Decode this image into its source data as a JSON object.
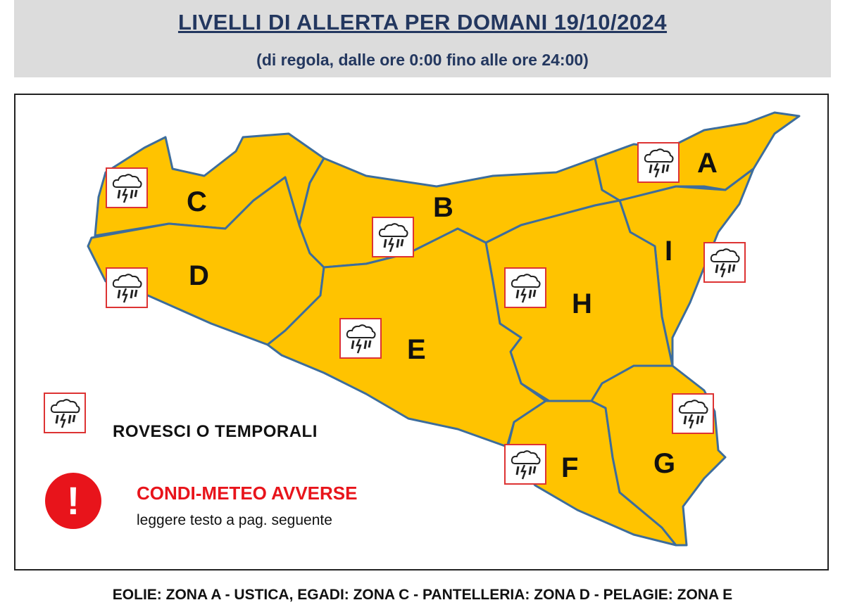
{
  "header": {
    "title": "LIVELLI DI ALLERTA PER DOMANI 19/10/2024",
    "subtitle": "(di regola, dalle ore 0:00 fino alle ore 24:00)"
  },
  "map": {
    "alert_color": "#FFC300",
    "border_color": "#3d6d9c",
    "zones": [
      {
        "id": "A",
        "label": "A",
        "level": "yellow",
        "icon": "thunderstorm-icon"
      },
      {
        "id": "B",
        "label": "B",
        "level": "yellow",
        "icon": "thunderstorm-icon"
      },
      {
        "id": "C",
        "label": "C",
        "level": "yellow",
        "icon": "thunderstorm-icon"
      },
      {
        "id": "D",
        "label": "D",
        "level": "yellow",
        "icon": "thunderstorm-icon"
      },
      {
        "id": "E",
        "label": "E",
        "level": "yellow",
        "icon": "thunderstorm-icon"
      },
      {
        "id": "F",
        "label": "F",
        "level": "yellow",
        "icon": "thunderstorm-icon"
      },
      {
        "id": "G",
        "label": "G",
        "level": "yellow",
        "icon": "thunderstorm-icon"
      },
      {
        "id": "H",
        "label": "H",
        "level": "yellow",
        "icon": "thunderstorm-icon"
      },
      {
        "id": "I",
        "label": "I",
        "level": "yellow",
        "icon": "thunderstorm-icon"
      }
    ]
  },
  "legend": {
    "storm_label": "ROVESCI O TEMPORALI",
    "alert_title": "CONDI-METEO AVVERSE",
    "alert_sub": "leggere testo a pag. seguente",
    "alert_symbol": "!",
    "alert_color": "#e8141b"
  },
  "footer": "EOLIE: ZONA A - USTICA, EGADI: ZONA C - PANTELLERIA: ZONA D - PELAGIE: ZONA E"
}
